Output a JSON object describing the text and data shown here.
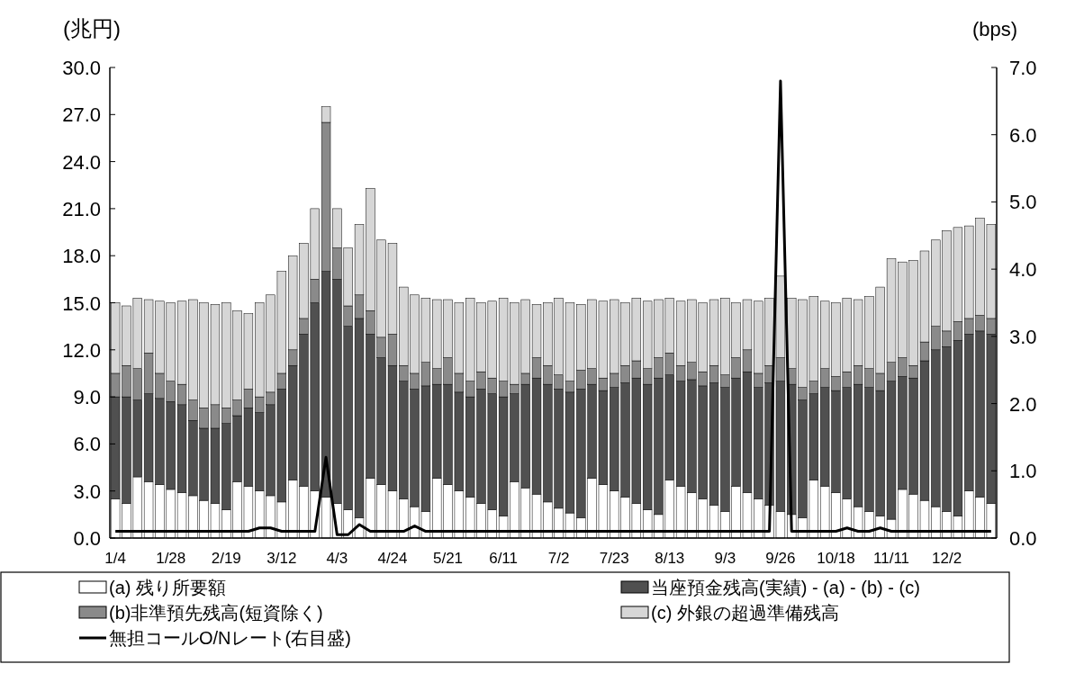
{
  "chart_data": {
    "type": "bar",
    "stacked": true,
    "ylabel": "(兆円)",
    "y2label": "(bps)",
    "legend": "bottom",
    "categories": [
      "1/4",
      null,
      null,
      null,
      null,
      "1/28",
      null,
      null,
      null,
      null,
      "2/19",
      null,
      null,
      null,
      null,
      "3/12",
      null,
      null,
      null,
      null,
      "4/3",
      null,
      null,
      null,
      null,
      "4/24",
      null,
      null,
      null,
      null,
      "5/21",
      null,
      null,
      null,
      null,
      "6/11",
      null,
      null,
      null,
      null,
      "7/2",
      null,
      null,
      null,
      null,
      "7/23",
      null,
      null,
      null,
      null,
      "8/13",
      null,
      null,
      null,
      null,
      "9/3",
      null,
      null,
      null,
      null,
      "9/26",
      null,
      null,
      null,
      null,
      "10/18",
      null,
      null,
      null,
      null,
      "11/11",
      null,
      null,
      null,
      null,
      "12/2",
      null,
      null,
      null,
      null
    ],
    "ylim": [
      0,
      30
    ],
    "yticks": [
      {
        "value": 0,
        "label": "0.0"
      },
      {
        "value": 3,
        "label": "3.0"
      },
      {
        "value": 6,
        "label": "6.0"
      },
      {
        "value": 9,
        "label": "9.0"
      },
      {
        "value": 12,
        "label": "12.0"
      },
      {
        "value": 15,
        "label": "15.0"
      },
      {
        "value": 18,
        "label": "18.0"
      },
      {
        "value": 21,
        "label": "21.0"
      },
      {
        "value": 24,
        "label": "24.0"
      },
      {
        "value": 27,
        "label": "27.0"
      },
      {
        "value": 30,
        "label": "30.0"
      }
    ],
    "y2lim": [
      0,
      7
    ],
    "y2ticks": [
      {
        "value": 0,
        "label": "0.0"
      },
      {
        "value": 1,
        "label": "1.0"
      },
      {
        "value": 2,
        "label": "2.0"
      },
      {
        "value": 3,
        "label": "3.0"
      },
      {
        "value": 4,
        "label": "4.0"
      },
      {
        "value": 5,
        "label": "5.0"
      },
      {
        "value": 6,
        "label": "6.0"
      },
      {
        "value": 7,
        "label": "7.0"
      }
    ],
    "series": [
      {
        "name": "(a) 残り所要額",
        "color": "#ffffff",
        "values": [
          2.5,
          2.2,
          3.9,
          3.6,
          3.4,
          3.1,
          2.9,
          2.7,
          2.4,
          2.2,
          1.8,
          3.6,
          3.3,
          3.0,
          2.7,
          2.3,
          3.7,
          3.3,
          3.0,
          2.6,
          2.2,
          1.8,
          1.3,
          3.8,
          3.4,
          3.0,
          2.5,
          2.0,
          1.7,
          3.8,
          3.4,
          3.0,
          2.6,
          2.2,
          1.8,
          1.4,
          3.6,
          3.2,
          2.8,
          2.3,
          1.9,
          1.6,
          1.3,
          3.8,
          3.4,
          3.0,
          2.6,
          2.2,
          1.8,
          1.5,
          3.7,
          3.3,
          2.9,
          2.5,
          2.1,
          1.7,
          3.3,
          2.9,
          2.5,
          2.1,
          1.7,
          1.5,
          1.3,
          3.7,
          3.3,
          2.9,
          2.5,
          2.0,
          1.7,
          1.4,
          1.2,
          3.1,
          2.8,
          2.4,
          2.0,
          1.7,
          1.4,
          3.0,
          2.6,
          2.2
        ]
      },
      {
        "name": "当座預金残高(実績) - (a) - (b) - (c)",
        "color": "#505050",
        "values": [
          6.5,
          6.8,
          4.9,
          5.6,
          5.5,
          5.6,
          5.6,
          4.8,
          4.6,
          4.8,
          5.5,
          4.2,
          5.0,
          5.0,
          5.8,
          7.2,
          7.3,
          9.7,
          12.0,
          14.4,
          14.3,
          11.7,
          12.7,
          9.2,
          8.1,
          8.0,
          7.5,
          7.5,
          8.0,
          6.0,
          6.4,
          6.3,
          6.4,
          7.3,
          7.4,
          7.6,
          5.6,
          6.6,
          7.4,
          7.5,
          7.6,
          7.7,
          8.2,
          6.0,
          6.0,
          6.6,
          7.3,
          8.0,
          8.0,
          8.7,
          6.7,
          6.7,
          7.2,
          7.2,
          7.8,
          7.9,
          6.9,
          7.7,
          7.1,
          7.8,
          8.3,
          8.3,
          7.5,
          5.5,
          6.3,
          6.5,
          7.1,
          7.8,
          7.9,
          8.0,
          8.8,
          7.2,
          7.4,
          8.9,
          10.0,
          10.5,
          11.2,
          10.0,
          10.6,
          10.8
        ]
      },
      {
        "name": "(b)非準預先残高(短資除く)",
        "color": "#8a8a8a",
        "values": [
          1.5,
          2.0,
          2.0,
          2.6,
          1.6,
          1.3,
          1.3,
          1.3,
          1.3,
          1.5,
          1.0,
          1.0,
          1.2,
          1.0,
          0.8,
          1.0,
          1.0,
          1.0,
          1.5,
          9.5,
          2.0,
          1.3,
          1.5,
          1.5,
          1.3,
          2.0,
          1.0,
          1.0,
          1.5,
          1.0,
          1.7,
          1.2,
          1.0,
          1.1,
          1.0,
          1.0,
          0.6,
          0.7,
          1.3,
          1.2,
          0.9,
          0.7,
          1.2,
          1.0,
          0.8,
          0.9,
          1.1,
          1.1,
          1.0,
          1.3,
          1.4,
          1.0,
          1.1,
          0.9,
          1.1,
          0.8,
          1.3,
          1.4,
          0.9,
          1.1,
          1.5,
          1.0,
          0.8,
          0.8,
          1.2,
          0.9,
          1.0,
          1.2,
          1.2,
          1.1,
          1.2,
          1.2,
          0.8,
          1.2,
          1.5,
          1.0,
          1.2,
          1.0,
          1.0,
          1.0
        ]
      },
      {
        "name": "(c) 外銀の超過準備残高",
        "color": "#d6d6d6",
        "values": [
          4.5,
          3.8,
          4.5,
          3.4,
          4.6,
          5.0,
          5.3,
          6.4,
          6.7,
          6.4,
          6.7,
          5.7,
          4.8,
          6.0,
          6.2,
          6.5,
          6.0,
          4.8,
          4.5,
          1.0,
          2.5,
          3.7,
          4.5,
          7.8,
          6.2,
          5.8,
          5.0,
          5.0,
          4.1,
          4.4,
          3.7,
          4.5,
          5.3,
          4.4,
          4.9,
          5.3,
          5.2,
          4.7,
          3.4,
          4.0,
          4.9,
          5.0,
          4.2,
          4.4,
          4.9,
          4.7,
          4.0,
          4.0,
          4.3,
          3.7,
          3.5,
          4.1,
          4.0,
          4.4,
          4.2,
          4.9,
          3.5,
          3.2,
          4.6,
          4.3,
          5.2,
          4.5,
          5.6,
          5.4,
          4.3,
          4.7,
          4.7,
          4.2,
          4.6,
          5.5,
          6.6,
          6.1,
          6.7,
          5.8,
          5.5,
          6.4,
          6.0,
          5.9,
          6.2,
          6.0
        ]
      },
      {
        "name": "無担コールO/Nレート(右目盛)",
        "type": "line",
        "axis": "y2",
        "color": "#000000",
        "values": [
          0.1,
          0.1,
          0.1,
          0.1,
          0.1,
          0.1,
          0.1,
          0.1,
          0.1,
          0.1,
          0.1,
          0.1,
          0.1,
          0.15,
          0.15,
          0.1,
          0.1,
          0.1,
          0.1,
          1.2,
          0.05,
          0.05,
          0.2,
          0.1,
          0.1,
          0.1,
          0.1,
          0.18,
          0.1,
          0.1,
          0.1,
          0.1,
          0.1,
          0.1,
          0.1,
          0.1,
          0.1,
          0.1,
          0.1,
          0.1,
          0.1,
          0.1,
          0.1,
          0.1,
          0.1,
          0.1,
          0.1,
          0.1,
          0.1,
          0.1,
          0.1,
          0.1,
          0.1,
          0.1,
          0.1,
          0.1,
          0.1,
          0.1,
          0.1,
          0.1,
          6.8,
          0.1,
          0.1,
          0.1,
          0.1,
          0.1,
          0.15,
          0.1,
          0.1,
          0.15,
          0.1,
          0.1,
          0.1,
          0.1,
          0.1,
          0.1,
          0.1,
          0.1,
          0.1,
          0.1
        ]
      }
    ]
  }
}
